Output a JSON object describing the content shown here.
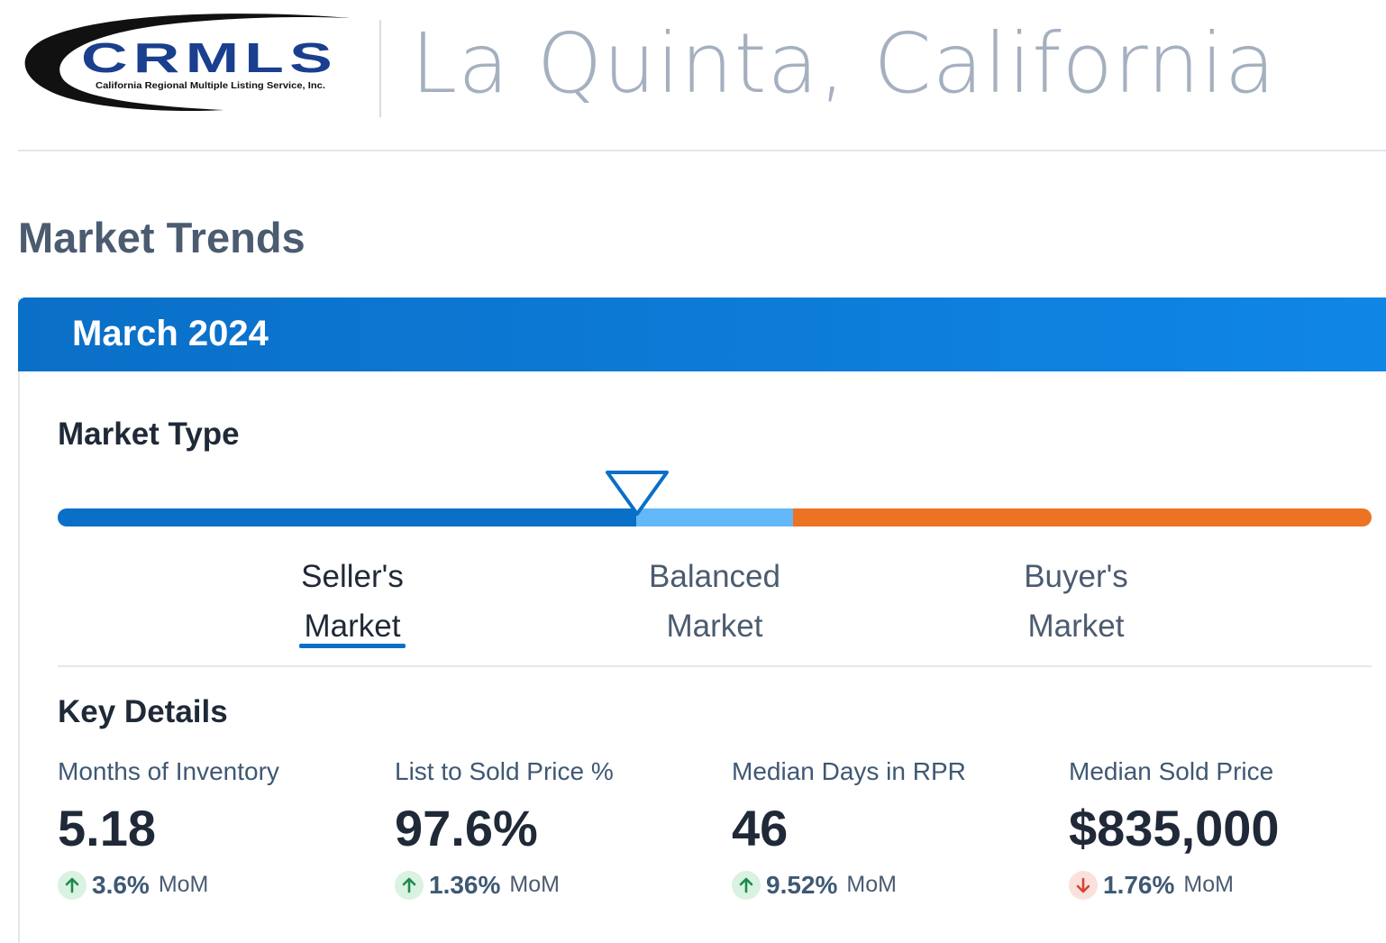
{
  "header": {
    "logo_text": "CRMLS",
    "logo_subtitle": "California Regional Multiple Listing Service, Inc.",
    "city": "La Quinta, California"
  },
  "section_title": "Market Trends",
  "card": {
    "period": "March 2024",
    "market_type": {
      "title": "Market Type",
      "labels": {
        "seller": [
          "Seller's",
          "Market"
        ],
        "balanced": [
          "Balanced",
          "Market"
        ],
        "buyer": [
          "Buyer's",
          "Market"
        ]
      },
      "selected": "seller",
      "colors": {
        "seller": "#0a6fc7",
        "balanced": "#63b8f7",
        "buyer": "#ec7322"
      }
    },
    "key_details": {
      "title": "Key Details",
      "metrics": [
        {
          "label": "Months of Inventory",
          "value": "5.18",
          "change": "3.6%",
          "unit": "MoM",
          "direction": "up"
        },
        {
          "label": "List to Sold Price %",
          "value": "97.6%",
          "change": "1.36%",
          "unit": "MoM",
          "direction": "up"
        },
        {
          "label": "Median Days in RPR",
          "value": "46",
          "change": "9.52%",
          "unit": "MoM",
          "direction": "up"
        },
        {
          "label": "Median Sold Price",
          "value": "$835,000",
          "change": "1.76%",
          "unit": "MoM",
          "direction": "down"
        }
      ]
    }
  },
  "icons": {
    "up": "arrow-up-icon",
    "down": "arrow-down-icon",
    "marker": "triangle-marker-icon"
  },
  "status_colors": {
    "up": "#1f8a4c",
    "down": "#d64533"
  }
}
